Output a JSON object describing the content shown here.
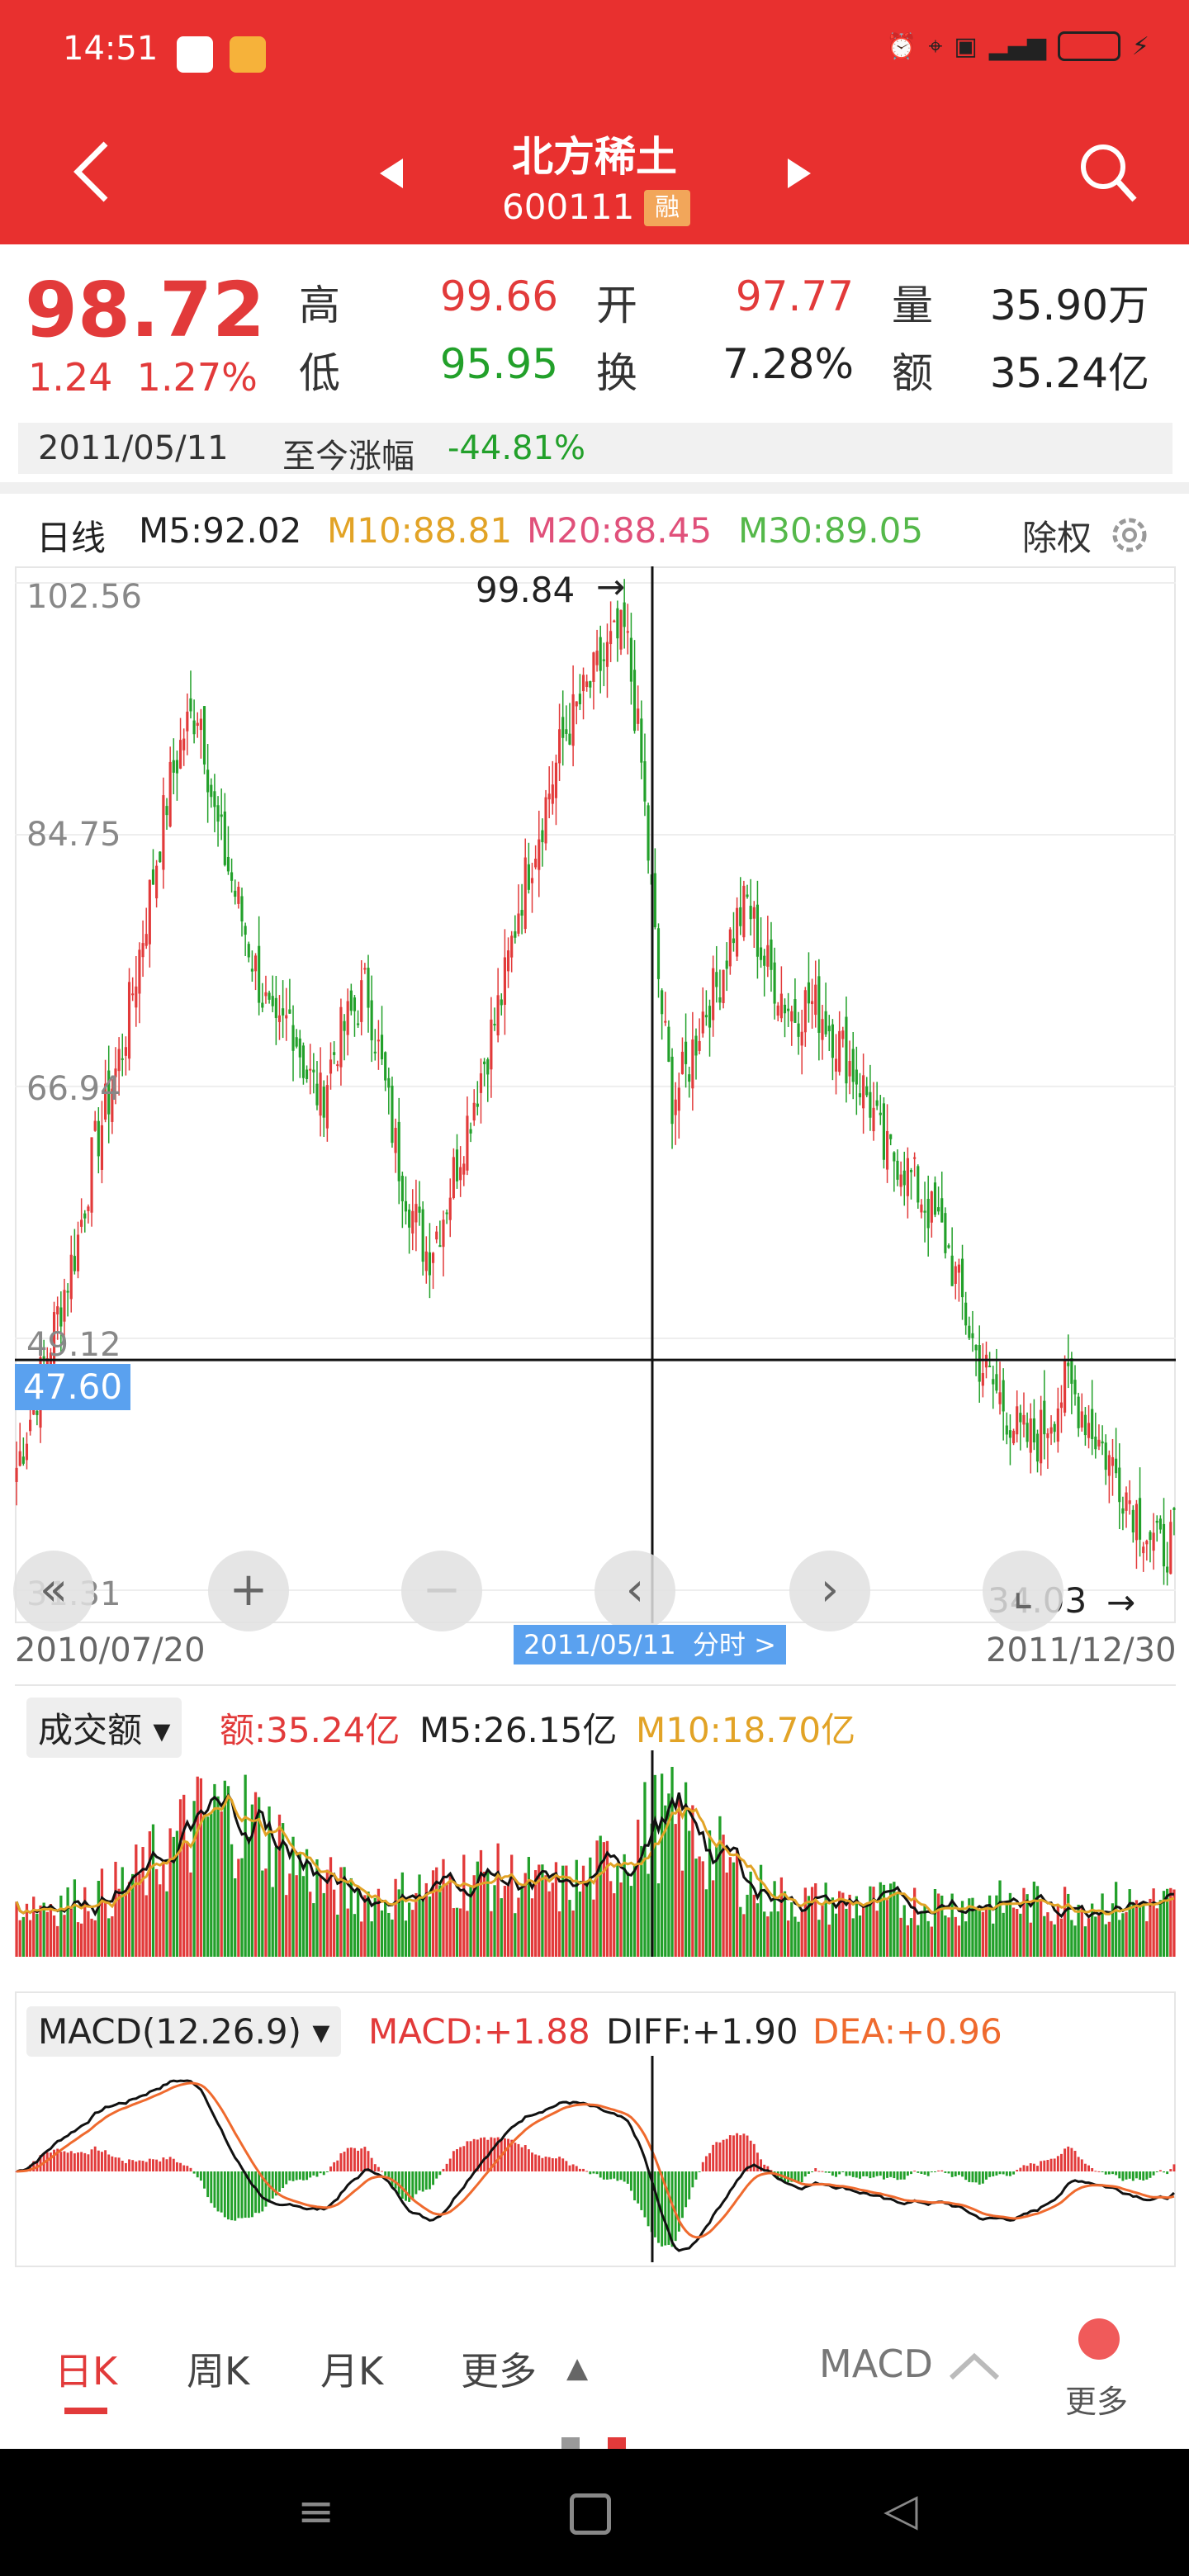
{
  "status_bar": {
    "time": "14:51"
  },
  "header": {
    "title": "北方稀土",
    "code": "600111",
    "margin_badge": "融"
  },
  "quote": {
    "price": "98.72",
    "change": "1.24",
    "change_pct": "1.27%",
    "high_label": "高",
    "high": "99.66",
    "low_label": "低",
    "low": "95.95",
    "open_label": "开",
    "open": "97.77",
    "turnover_label": "换",
    "turnover": "7.28%",
    "volume_label": "量",
    "volume": "35.90万",
    "amount_label": "额",
    "amount": "35.24亿"
  },
  "since": {
    "date": "2011/05/11",
    "label": "至今涨幅",
    "value": "-44.81%"
  },
  "kline_header": {
    "period": "日线",
    "m5": "M5:92.02",
    "m10": "M10:88.81",
    "m20": "M20:88.45",
    "m30": "M30:89.05",
    "adjust": "除权"
  },
  "chart_data": [
    {
      "type": "candlestick",
      "y_ticks": [
        "102.56",
        "84.75",
        "66.94",
        "49.12",
        "31.31"
      ],
      "ylim": [
        31.31,
        102.56
      ],
      "x_start": "2010/07/20",
      "x_end": "2011/12/30",
      "max_marker": "99.84",
      "min_marker": "34.03",
      "crosshair_price": "47.60",
      "crosshair_date": "2011/05/11",
      "crosshair_link": "分时 >",
      "series": [
        {
          "close_path": [
            40,
            44,
            48,
            52,
            56,
            62,
            66,
            70,
            76,
            82,
            88,
            92,
            94,
            86,
            82,
            78,
            74,
            70,
            72,
            68,
            66,
            70,
            72,
            74,
            68,
            62,
            58,
            55,
            58,
            62,
            66,
            70,
            74,
            80,
            84,
            88,
            92,
            94,
            96,
            98,
            99,
            90,
            76,
            66,
            68,
            72,
            74,
            78,
            80,
            76,
            74,
            72,
            73,
            72,
            70,
            68,
            66,
            62,
            62,
            60,
            58,
            56,
            52,
            48,
            46,
            44,
            42,
            42,
            44,
            46,
            44,
            42,
            40,
            38,
            36,
            34,
            35
          ]
        }
      ]
    },
    {
      "type": "bar",
      "pill": "成交额",
      "amount": "额:35.24亿",
      "m5": "M5:26.15亿",
      "m10": "M10:18.70亿"
    },
    {
      "type": "bar",
      "pill": "MACD(12.26.9)",
      "macd": "MACD:+1.88",
      "diff": "DIFF:+1.90",
      "dea": "DEA:+0.96"
    }
  ],
  "tabs": {
    "day": "日K",
    "week": "周K",
    "month": "月K",
    "more": "更多",
    "indicator": "MACD",
    "more_btn": "更多"
  },
  "colors": {
    "up": "#e23a3a",
    "down": "#22a02a",
    "accent": "#e8302f",
    "m10": "#e2a326",
    "m20": "#e0507a",
    "m30": "#55b84a"
  }
}
